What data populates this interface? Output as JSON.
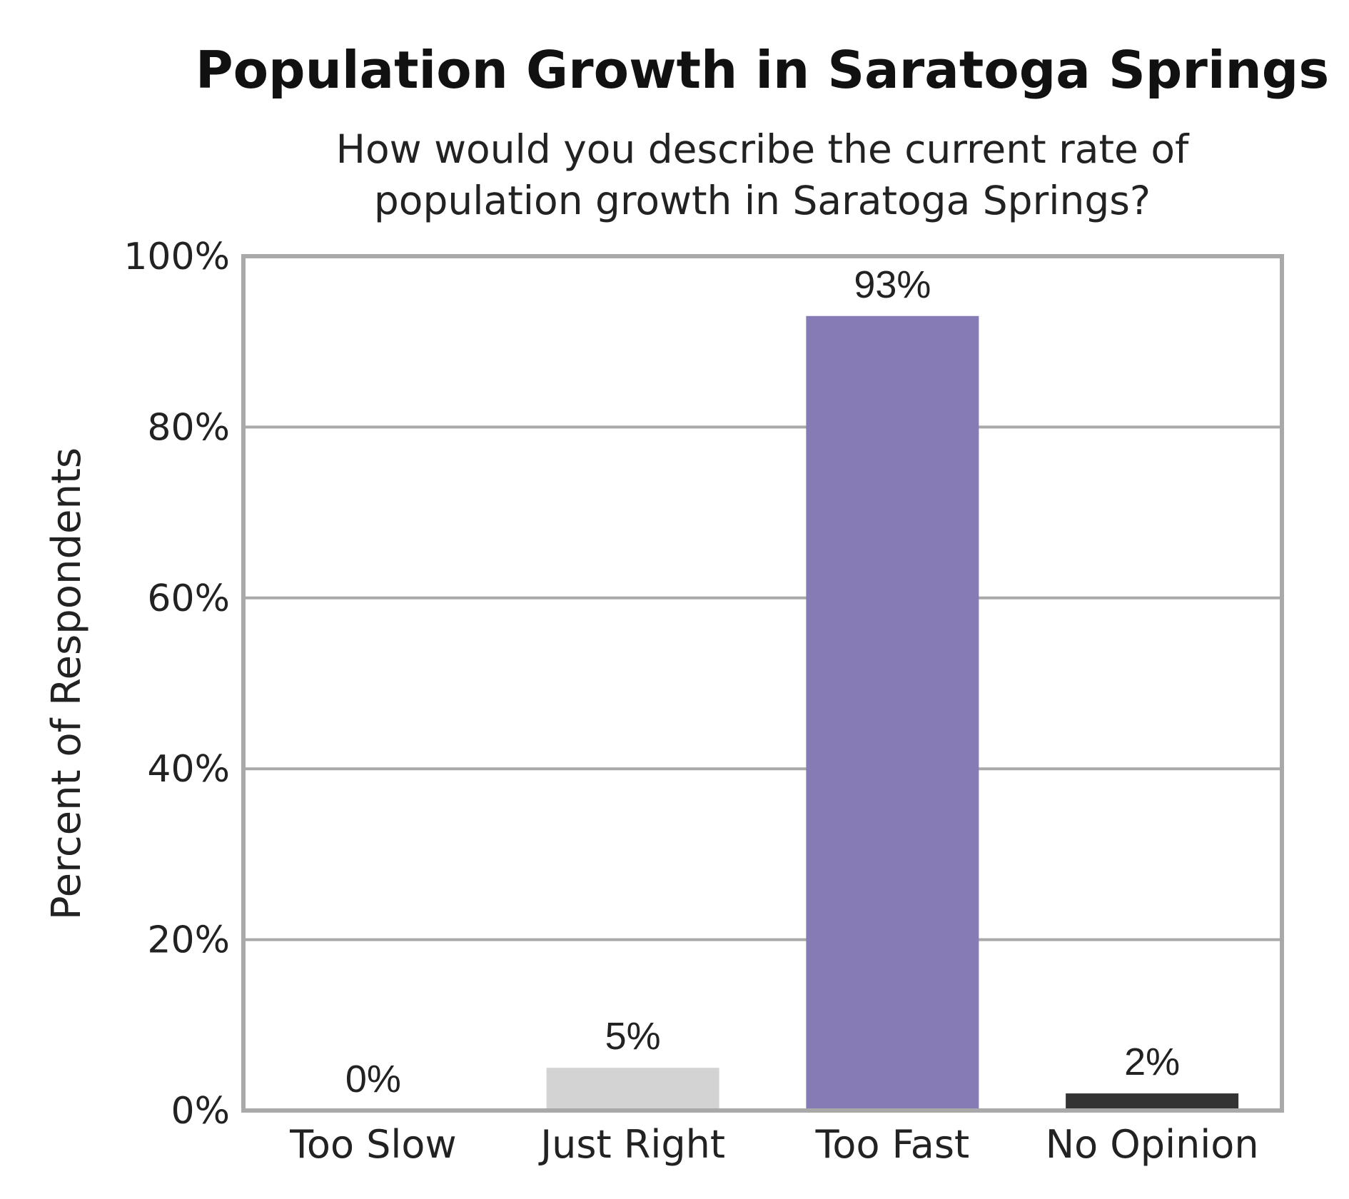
{
  "chart_data": {
    "type": "bar",
    "title": "Population Growth in Saratoga Springs",
    "subtitle": [
      "How would you describe the current rate of",
      "population growth in Saratoga Springs?"
    ],
    "xlabel": "",
    "ylabel": "Percent of Respondents",
    "categories": [
      "Too Slow",
      "Just Right",
      "Too Fast",
      "No Opinion"
    ],
    "values": [
      0,
      5,
      93,
      2
    ],
    "data_labels": [
      "0%",
      "5%",
      "93%",
      "2%"
    ],
    "colors": [
      "#ffffff",
      "#d3d3d3",
      "#877bb6",
      "#333333"
    ],
    "ylim": [
      0,
      100
    ],
    "yticks": [
      0,
      20,
      40,
      60,
      80,
      100
    ],
    "ytick_labels": [
      "0%",
      "20%",
      "40%",
      "60%",
      "80%",
      "100%"
    ],
    "grid": true,
    "legend": "none"
  }
}
